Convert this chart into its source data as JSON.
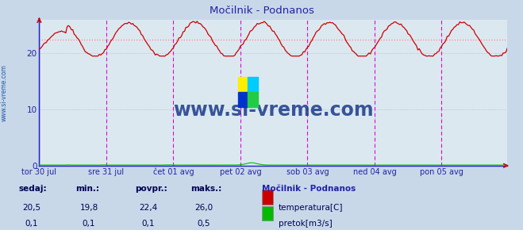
{
  "title": "Močilnik - Podnanos",
  "background_color": "#c8d8e8",
  "plot_bg_color": "#dce8f0",
  "x_labels": [
    "tor 30 jul",
    "sre 31 jul",
    "čet 01 avg",
    "pet 02 avg",
    "sob 03 avg",
    "ned 04 avg",
    "pon 05 avg"
  ],
  "x_ticks_pos": [
    0,
    48,
    96,
    144,
    192,
    240,
    288
  ],
  "n_points": 336,
  "ylim": [
    0,
    26
  ],
  "yticks": [
    0,
    10,
    20
  ],
  "avg_temp": 22.4,
  "temp_color": "#cc0000",
  "flow_color": "#00bb00",
  "avg_line_color": "#ff8888",
  "grid_color": "#aabbcc",
  "vline_color_magenta": "#dd00dd",
  "vline_color_blue": "#2222cc",
  "watermark": "www.si-vreme.com",
  "watermark_color": "#1a3a8a",
  "title_color": "#2222aa",
  "label_color": "#2222aa",
  "stat_label_color": "#000055",
  "stat_value_color": "#000055",
  "arrow_color": "#cc0000",
  "spine_color": "#2222cc",
  "sedaj_label": "sedaj:",
  "min_label": "min.:",
  "povpr_label": "povpr.:",
  "maks_label": "maks.:",
  "station_label": "Močilnik - Podnanos",
  "temp_label": "temperatura[C]",
  "flow_label": "pretok[m3/s]",
  "sedaj_temp": "20,5",
  "min_temp": "19,8",
  "povpr_temp": "22,4",
  "maks_temp": "26,0",
  "sedaj_flow": "0,1",
  "min_flow": "0,1",
  "povpr_flow": "0,1",
  "maks_flow": "0,5",
  "ylabel_text": "www.si-vreme.com",
  "ylabel_color": "#2255aa"
}
